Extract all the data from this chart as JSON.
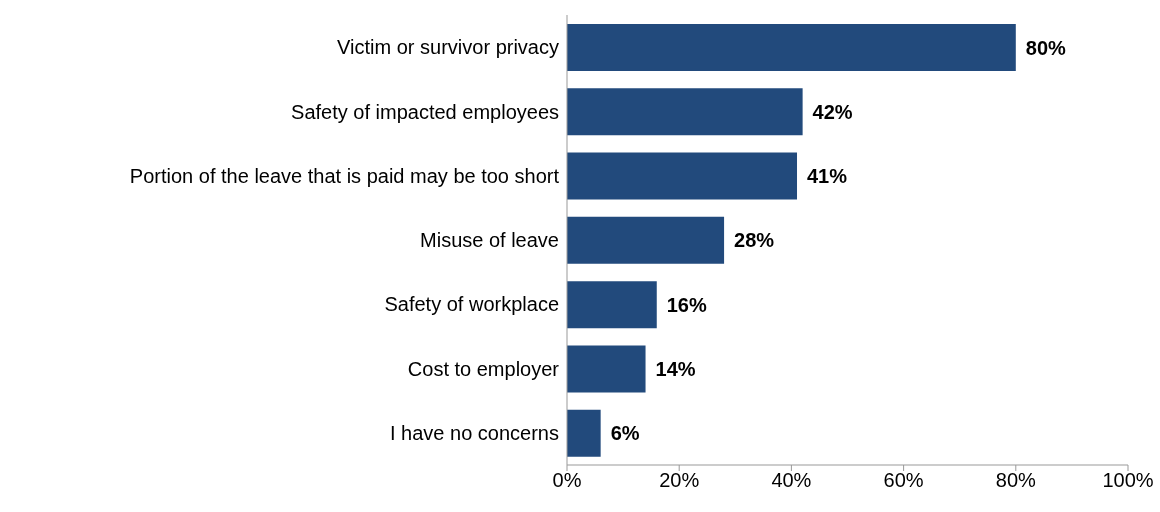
{
  "chart_data": {
    "type": "bar",
    "orientation": "horizontal",
    "categories": [
      "Victim or survivor privacy",
      "Safety of impacted employees",
      "Portion of the leave that is paid may be too short",
      "Misuse of leave",
      "Safety of workplace",
      "Cost to employer",
      "I have no concerns"
    ],
    "values": [
      80,
      42,
      41,
      28,
      16,
      14,
      6
    ],
    "value_labels": [
      "80%",
      "42%",
      "41%",
      "28%",
      "16%",
      "14%",
      "6%"
    ],
    "color": "#224a7c",
    "xlim": [
      0,
      100
    ],
    "xticks": [
      {
        "value": 0,
        "label": "0%"
      },
      {
        "value": 20,
        "label": "20%"
      },
      {
        "value": 40,
        "label": "40%"
      },
      {
        "value": 60,
        "label": "60%"
      },
      {
        "value": 80,
        "label": "80%"
      },
      {
        "value": 100,
        "label": "100%"
      }
    ],
    "grid": false,
    "legend": false
  }
}
